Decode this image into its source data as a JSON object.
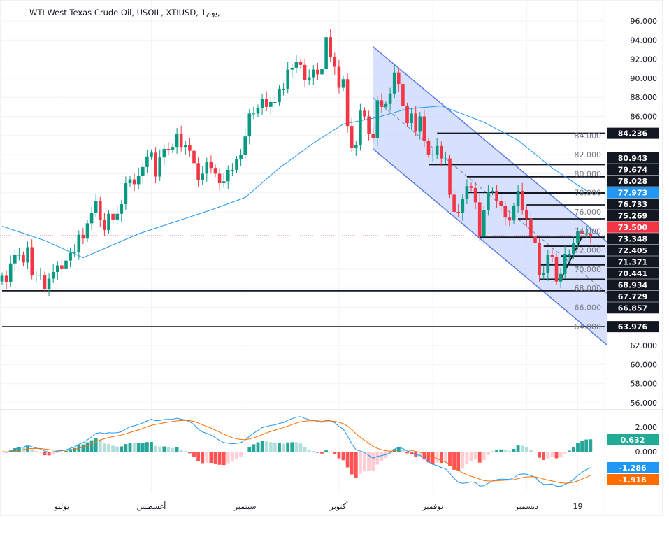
{
  "title": "WTI West Texas Crude Oil, USOIL, XTIUSD, 1يوم,",
  "colors": {
    "up": "#089981",
    "down": "#f23645",
    "ma": "#2196f3",
    "signal": "#ff6d00",
    "channel_fill": "#c9d6fb",
    "channel_line": "#5b7be6",
    "level": "#131722",
    "current": "#f23645"
  },
  "chart_data": [
    {
      "type": "candlestick",
      "ylim": [
        56,
        96
      ],
      "yticks": [
        "96.000",
        "94.000",
        "92.000",
        "90.000",
        "88.000",
        "86.000",
        "84.000",
        "82.000",
        "80.000",
        "78.000",
        "76.000",
        "74.000",
        "72.000",
        "70.000",
        "68.000",
        "66.000",
        "64.000",
        "62.000",
        "60.000",
        "58.000",
        "56.000"
      ],
      "xticks": [
        {
          "label": "يوليو",
          "index": 14
        },
        {
          "label": "أغسطس",
          "index": 35
        },
        {
          "label": "سبتمبر",
          "index": 57
        },
        {
          "label": "أكتوبر",
          "index": 79
        },
        {
          "label": "نوفمبر",
          "index": 101
        },
        {
          "label": "ديسمبر",
          "index": 123
        },
        {
          "label": "19",
          "index": 135
        }
      ],
      "close": [
        69.3,
        68.6,
        70.6,
        71.5,
        71.5,
        70.7,
        72.3,
        69.4,
        69.4,
        69.4,
        67.9,
        69.0,
        69.7,
        70.4,
        70.0,
        70.9,
        71.7,
        71.8,
        73.6,
        73.2,
        74.8,
        75.9,
        77.1,
        75.2,
        74.1,
        75.8,
        75.2,
        75.8,
        76.8,
        79.0,
        79.4,
        78.9,
        79.8,
        80.7,
        81.8,
        82.2,
        79.7,
        81.7,
        82.6,
        82.5,
        82.8,
        84.2,
        82.8,
        83.0,
        82.4,
        81.1,
        79.3,
        80.0,
        81.2,
        80.6,
        80.0,
        79.0,
        79.2,
        80.4,
        80.4,
        81.5,
        82.0,
        83.9,
        86.3,
        86.3,
        86.9,
        87.8,
        87.0,
        87.5,
        87.5,
        88.9,
        88.9,
        90.9,
        91.1,
        91.7,
        91.4,
        89.8,
        90.1,
        90.9,
        90.4,
        91.0,
        94.3,
        92.2,
        91.2,
        89.0,
        89.9,
        85.0,
        82.7,
        83.0,
        86.6,
        86.0,
        84.2,
        83.7,
        87.7,
        87.0,
        87.3,
        88.4,
        90.6,
        89.4,
        87.1,
        85.3,
        86.3,
        84.4,
        86.0,
        83.4,
        82.0,
        82.0,
        82.9,
        81.6,
        81.6,
        77.8,
        76.0,
        75.9,
        77.4,
        78.7,
        78.5,
        77.0,
        73.4,
        76.2,
        78.1,
        78.2,
        77.1,
        76.6,
        75.4,
        75.1,
        76.6,
        78.2,
        76.2,
        75.3,
        73.4,
        72.7,
        69.4,
        69.6,
        71.5,
        71.3,
        68.7,
        69.5,
        71.6,
        71.6,
        72.7,
        74.0,
        73.7,
        73.7,
        73.5
      ],
      "moving_average": [
        [
          0,
          74.5
        ],
        [
          10,
          73.0
        ],
        [
          19,
          71.2
        ],
        [
          32,
          73.7
        ],
        [
          49,
          76.2
        ],
        [
          57,
          77.5
        ],
        [
          65,
          80.6
        ],
        [
          73,
          83.2
        ],
        [
          80,
          85.2
        ],
        [
          88,
          85.9
        ],
        [
          95,
          86.8
        ],
        [
          103,
          87.1
        ],
        [
          113,
          85.4
        ],
        [
          121,
          83.5
        ],
        [
          129,
          80.6
        ],
        [
          137,
          78.2
        ]
      ],
      "channel": {
        "start_index": 87,
        "end_index": 142,
        "upper": [
          93.3,
          72.8
        ],
        "lower": [
          82.6,
          62.0
        ]
      },
      "trendline": {
        "from": [
          131,
          68.9
        ],
        "to": [
          136,
          73.4
        ]
      },
      "levels": [
        {
          "value": "84.236",
          "start_index": 102,
          "style": "line"
        },
        {
          "value": "80.943",
          "start_index": 100,
          "style": "line"
        },
        {
          "value": "79.674",
          "start_index": 109,
          "style": "line"
        },
        {
          "value": "78.028",
          "start_index": 109,
          "style": "line"
        },
        {
          "value": "77.973",
          "start_index": 116,
          "style": "ma"
        },
        {
          "value": "76.733",
          "start_index": 123,
          "style": "line"
        },
        {
          "value": "75.269",
          "start_index": 121,
          "style": "line"
        },
        {
          "value": "73.500",
          "start_index": 0,
          "style": "current"
        },
        {
          "value": "73.348",
          "start_index": 112,
          "style": "line"
        },
        {
          "value": "72.405",
          "start_index": 127,
          "style": "line"
        },
        {
          "value": "71.371",
          "start_index": 131,
          "style": "line"
        },
        {
          "value": "70.441",
          "start_index": 126,
          "style": "line"
        },
        {
          "value": "68.934",
          "start_index": 126,
          "style": "line"
        },
        {
          "value": "67.729",
          "start_index": 0,
          "style": "line"
        },
        {
          "value": "66.857",
          "start_index": null,
          "style": "label"
        },
        {
          "value": "63.976",
          "start_index": 0,
          "style": "line"
        }
      ]
    },
    {
      "type": "macd",
      "ylim": [
        -3.5,
        3.5
      ],
      "yticks": [
        "2.000",
        "0.000"
      ],
      "last": {
        "histogram": "0.632",
        "macd": "-1.286",
        "signal": "-1.918"
      }
    }
  ]
}
